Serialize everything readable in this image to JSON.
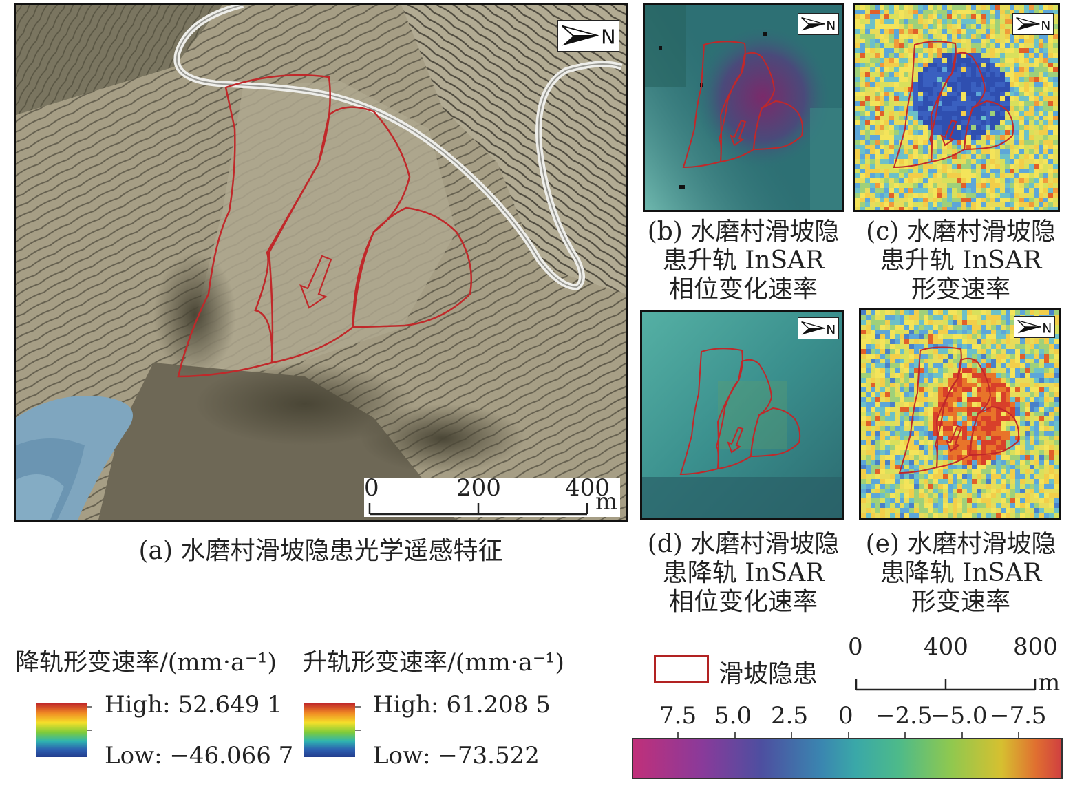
{
  "panel_a": {
    "caption": "(a) 水磨村滑坡隐患光学遥感特征",
    "north_label": "N",
    "scale_ticks": [
      "0",
      "200",
      "400"
    ],
    "scale_unit": "m"
  },
  "panel_b": {
    "caption_lines": [
      "(b) 水磨村滑坡隐",
      "患升轨 InSAR",
      "相位变化速率"
    ],
    "north_label": "N"
  },
  "panel_c": {
    "caption_lines": [
      "(c) 水磨村滑坡隐",
      "患升轨 InSAR",
      "形变速率"
    ],
    "north_label": "N"
  },
  "panel_d": {
    "caption_lines": [
      "(d) 水磨村滑坡隐",
      "患降轨 InSAR",
      "相位变化速率"
    ],
    "north_label": "N"
  },
  "panel_e": {
    "caption_lines": [
      "(e) 水磨村滑坡隐",
      "患降轨 InSAR",
      "形变速率"
    ],
    "north_label": "N"
  },
  "legend": {
    "descending": {
      "title": "降轨形变速率/(mm·a⁻¹)",
      "high": "High: 52.649 1",
      "low": "Low: −46.066 7"
    },
    "ascending": {
      "title": "升轨形变速率/(mm·a⁻¹)",
      "high": "High: 61.208 5",
      "low": "Low: −73.522"
    },
    "landslide_label": "滑坡隐患",
    "landslide_color": "#b22222",
    "scale_ticks": [
      "0",
      "400",
      "800"
    ],
    "scale_unit": "m",
    "phase_ticks": [
      "7.5",
      "5.0",
      "2.5",
      "0",
      "−2.5",
      "−5.0",
      "−7.5"
    ]
  }
}
